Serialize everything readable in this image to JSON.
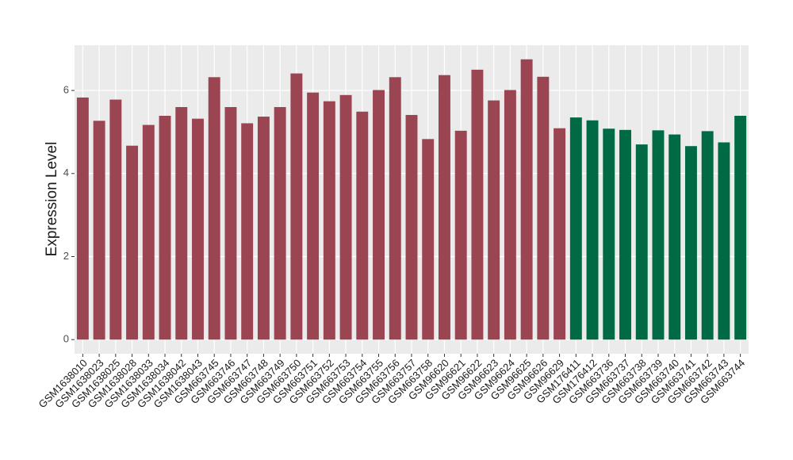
{
  "chart_data": {
    "type": "bar",
    "y_label": "Expression Level",
    "categories": [
      "GSM1638010",
      "GSM1638023",
      "GSM1638025",
      "GSM1638028",
      "GSM1638033",
      "GSM1638034",
      "GSM1638042",
      "GSM1638043",
      "GSM663745",
      "GSM663746",
      "GSM663747",
      "GSM663748",
      "GSM663749",
      "GSM663750",
      "GSM663751",
      "GSM663752",
      "GSM663753",
      "GSM663754",
      "GSM663755",
      "GSM663756",
      "GSM663757",
      "GSM663758",
      "GSM96620",
      "GSM96621",
      "GSM96622",
      "GSM96623",
      "GSM96624",
      "GSM96625",
      "GSM96626",
      "GSM96629",
      "GSM176411",
      "GSM176412",
      "GSM663736",
      "GSM663737",
      "GSM663738",
      "GSM663739",
      "GSM663740",
      "GSM663741",
      "GSM663742",
      "GSM663743",
      "GSM663744"
    ],
    "series": [
      {
        "color": "#9b4452",
        "values": [
          5.83,
          5.27,
          5.78,
          4.67,
          5.17,
          5.39,
          5.6,
          5.32,
          6.32,
          5.6,
          5.21,
          5.37,
          5.6,
          6.41,
          5.95,
          5.74,
          5.89,
          5.49,
          6.01,
          6.32,
          5.41,
          4.83,
          6.37,
          5.03,
          6.5,
          5.76,
          6.01,
          6.75,
          6.33,
          5.09,
          null,
          null,
          null,
          null,
          null,
          null,
          null,
          null,
          null,
          null,
          null
        ]
      },
      {
        "color": "#006a45",
        "values": [
          null,
          null,
          null,
          null,
          null,
          null,
          null,
          null,
          null,
          null,
          null,
          null,
          null,
          null,
          null,
          null,
          null,
          null,
          null,
          null,
          null,
          null,
          null,
          null,
          null,
          null,
          null,
          null,
          null,
          null,
          5.35,
          5.28,
          5.08,
          5.05,
          4.7,
          5.04,
          4.94,
          4.66,
          5.02,
          4.75,
          5.39
        ]
      }
    ],
    "ylim": [
      -0.34,
      7.09
    ],
    "yticks": [
      0,
      2,
      4,
      6
    ],
    "grid": true
  }
}
